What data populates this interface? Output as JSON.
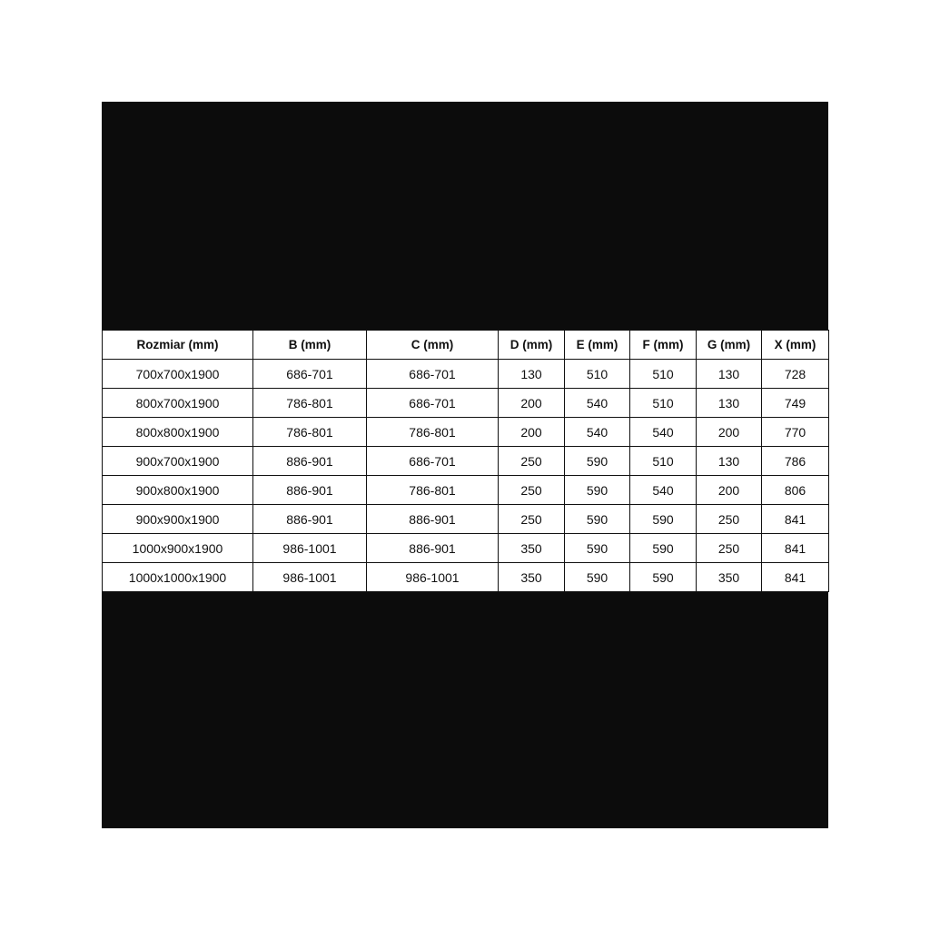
{
  "table": {
    "headers": [
      "Rozmiar (mm)",
      "B (mm)",
      "C (mm)",
      "D (mm)",
      "E (mm)",
      "F (mm)",
      "G (mm)",
      "X (mm)"
    ],
    "rows": [
      [
        "700x700x1900",
        "686-701",
        "686-701",
        "130",
        "510",
        "510",
        "130",
        "728"
      ],
      [
        "800x700x1900",
        "786-801",
        "686-701",
        "200",
        "540",
        "510",
        "130",
        "749"
      ],
      [
        "800x800x1900",
        "786-801",
        "786-801",
        "200",
        "540",
        "540",
        "200",
        "770"
      ],
      [
        "900x700x1900",
        "886-901",
        "686-701",
        "250",
        "590",
        "510",
        "130",
        "786"
      ],
      [
        "900x800x1900",
        "886-901",
        "786-801",
        "250",
        "590",
        "540",
        "200",
        "806"
      ],
      [
        "900x900x1900",
        "886-901",
        "886-901",
        "250",
        "590",
        "590",
        "250",
        "841"
      ],
      [
        "1000x900x1900",
        "986-1001",
        "886-901",
        "350",
        "590",
        "590",
        "250",
        "841"
      ],
      [
        "1000x1000x1900",
        "986-1001",
        "986-1001",
        "350",
        "590",
        "590",
        "350",
        "841"
      ]
    ]
  }
}
